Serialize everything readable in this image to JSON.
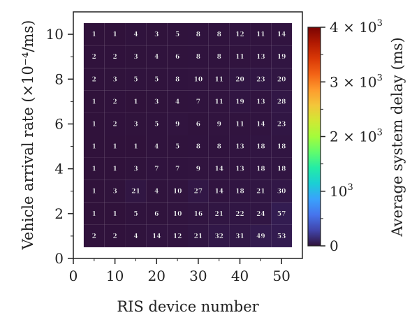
{
  "chart_data": {
    "type": "heatmap",
    "title": "",
    "xlabel": "RIS device number",
    "ylabel": "Vehicle arrival rate (×10⁻⁴/ms)",
    "x": [
      5,
      10,
      15,
      20,
      25,
      30,
      35,
      40,
      45,
      50
    ],
    "y": [
      1,
      2,
      3,
      4,
      5,
      6,
      7,
      8,
      9,
      10
    ],
    "xlim": [
      0,
      55
    ],
    "ylim": [
      0,
      11
    ],
    "x_ticks": [
      0,
      10,
      20,
      30,
      40,
      50
    ],
    "x_tick_labels": [
      "0",
      "10",
      "20",
      "30",
      "40",
      "50"
    ],
    "y_ticks": [
      0,
      2,
      4,
      6,
      8,
      10
    ],
    "y_tick_labels": [
      "0",
      "2",
      "4",
      "6",
      "8",
      "10"
    ],
    "values": [
      [
        2,
        2,
        4,
        14,
        12,
        21,
        32,
        31,
        49,
        53
      ],
      [
        1,
        1,
        5,
        6,
        10,
        16,
        21,
        22,
        24,
        57
      ],
      [
        1,
        3,
        21,
        4,
        10,
        27,
        14,
        18,
        21,
        30
      ],
      [
        1,
        1,
        3,
        7,
        7,
        9,
        14,
        13,
        18,
        18
      ],
      [
        1,
        1,
        1,
        4,
        5,
        8,
        8,
        13,
        18,
        18
      ],
      [
        1,
        2,
        3,
        5,
        9,
        6,
        9,
        11,
        14,
        23
      ],
      [
        1,
        2,
        1,
        3,
        4,
        7,
        11,
        19,
        13,
        28
      ],
      [
        2,
        3,
        5,
        5,
        8,
        10,
        11,
        20,
        23,
        20
      ],
      [
        2,
        2,
        3,
        4,
        6,
        8,
        8,
        11,
        13,
        19
      ],
      [
        1,
        1,
        4,
        3,
        5,
        8,
        8,
        12,
        11,
        14
      ]
    ],
    "colorbar": {
      "label": "Average system delay (ms)",
      "range": [
        0,
        4000
      ],
      "ticks": [
        0,
        1000,
        2000,
        3000,
        4000
      ],
      "tick_labels": [
        {
          "base": "0",
          "exp": ""
        },
        {
          "base": "10",
          "exp": "3"
        },
        {
          "base": "2 × 10",
          "exp": "3"
        },
        {
          "base": "3 × 10",
          "exp": "3"
        },
        {
          "base": "4 × 10",
          "exp": "3"
        }
      ],
      "colormap": [
        "#30123b",
        "#4145ab",
        "#4675ed",
        "#39a2fc",
        "#1bcfd4",
        "#24eca6",
        "#61fc6c",
        "#a4fc3b",
        "#d1e834",
        "#f3c63a",
        "#fe9b2d",
        "#f36315",
        "#d93806",
        "#b11901",
        "#7a0403"
      ]
    },
    "grid": false
  }
}
